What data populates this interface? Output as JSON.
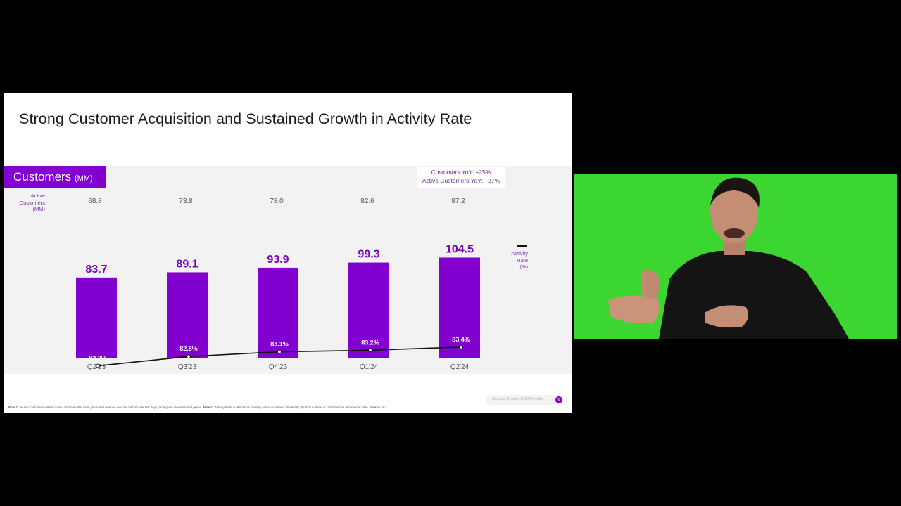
{
  "slide": {
    "title": "Strong Customer Acquisition and Sustained Growth in Activity Rate",
    "panel_label": "Customers",
    "panel_label_unit": "(MM)",
    "yoy_lines": [
      "Customers YoY: +25%",
      "Active Customers YoY: +27%"
    ],
    "active_customers_label": [
      "Active",
      "Customers",
      "(MM)"
    ],
    "activity_rate_label": [
      "Activity",
      "Rate",
      "(%)"
    ],
    "footnote_note1_tag": "Note 1:",
    "footnote_note1": " 'Active Customers' relates to all customers that have generated revenue over the last 30 calendar days, for a given measurement period. ",
    "footnote_note2_tag": "Note 2:",
    "footnote_note2": " 'Activity Rate' is defined as monthly active customers divided by the total number of customers as of a specific date. ",
    "footnote_source_tag": "Source:",
    "footnote_source": " Nu.",
    "footer_text": "Second Quarter 2024 Results",
    "page_number": "6"
  },
  "chart_data": {
    "type": "bar",
    "title": "Customers (MM)",
    "categories": [
      "Q2'23",
      "Q3'23",
      "Q4'23",
      "Q1'24",
      "Q2'24"
    ],
    "series": [
      {
        "name": "Customers (MM)",
        "type": "bar",
        "values": [
          83.7,
          89.1,
          93.9,
          99.3,
          104.5
        ],
        "labels": [
          "83.7",
          "89.1",
          "93.9",
          "99.3",
          "104.5"
        ]
      },
      {
        "name": "Activity Rate (%)",
        "type": "line",
        "values": [
          82.2,
          82.8,
          83.1,
          83.2,
          83.4
        ],
        "labels": [
          "82.2%",
          "82.8%",
          "83.1%",
          "83.2%",
          "83.4%"
        ]
      },
      {
        "name": "Active Customers (MM)",
        "type": "text",
        "values": [
          68.8,
          73.8,
          78.0,
          82.6,
          87.2
        ],
        "labels": [
          "68.8",
          "73.8",
          "78.0",
          "82.6",
          "87.2"
        ]
      }
    ],
    "xlabel": "",
    "ylabel": "",
    "grid": false,
    "legend": "right",
    "colors": {
      "bar": "#8200d0",
      "bar_label": "#7a00c2",
      "line": "#111111",
      "text": "#555555"
    }
  }
}
